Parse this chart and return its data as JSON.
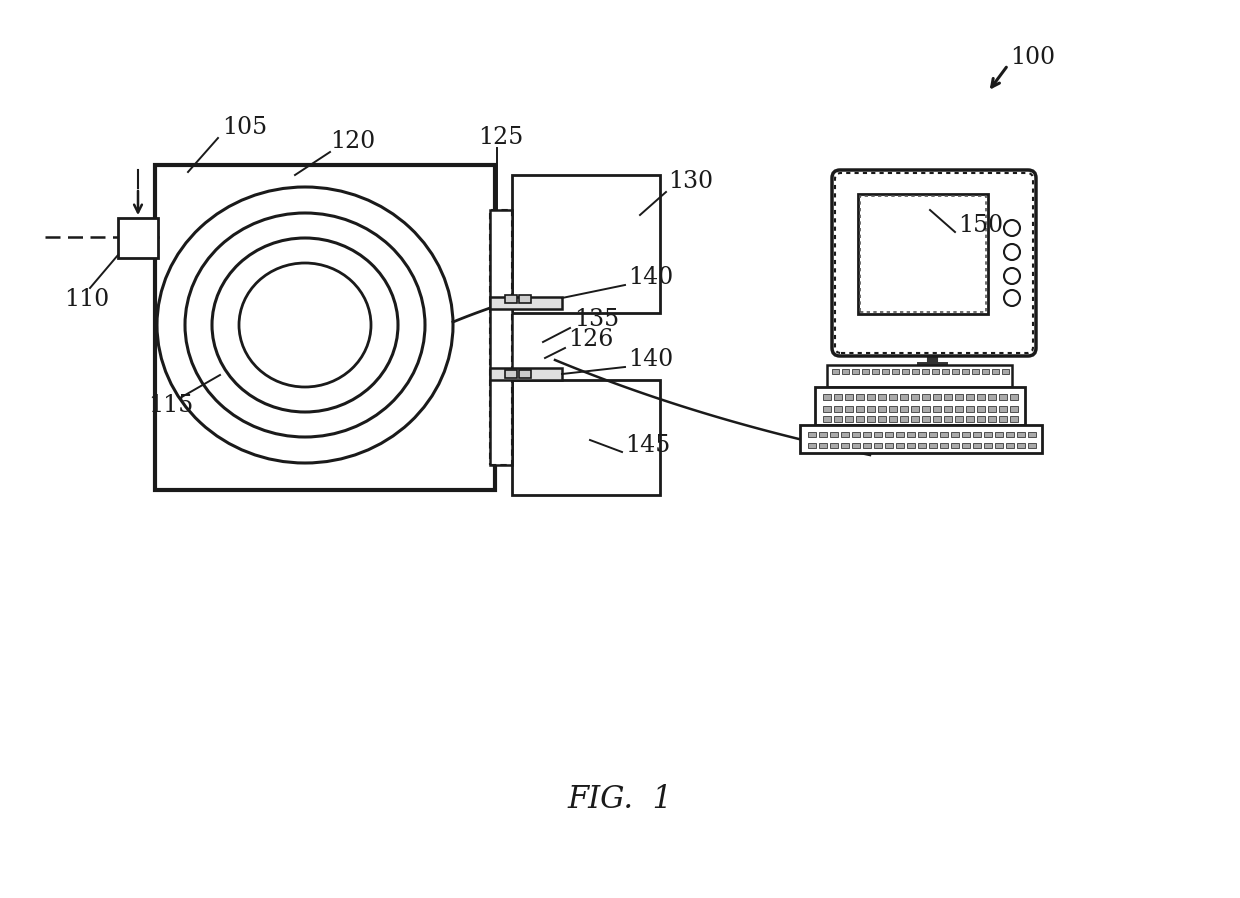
{
  "bg": "#ffffff",
  "lc": "#1a1a1a",
  "fig_label": "FIG.  1",
  "fs": 17
}
